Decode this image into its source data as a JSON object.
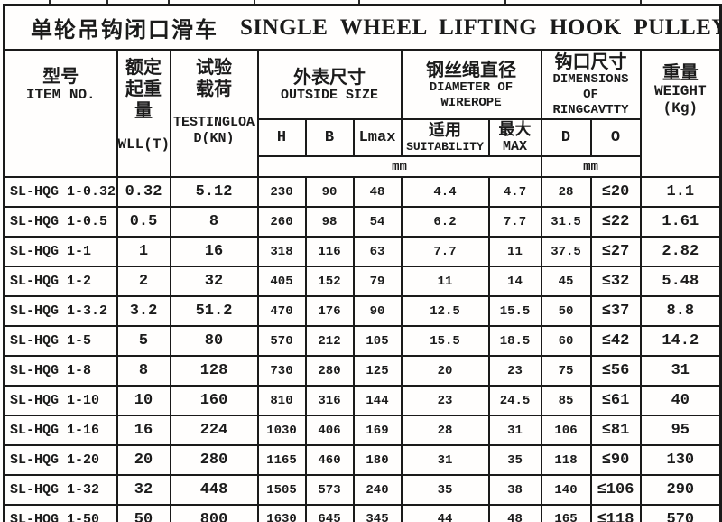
{
  "title": {
    "zh": "单轮吊钩闭口滑车",
    "en": "SINGLE WHEEL LIFTING HOOK PULLEY BLOCK"
  },
  "columns": {
    "item": {
      "zh": "型号",
      "en": "ITEM NO."
    },
    "wll": {
      "zh1": "额定",
      "zh2": "起重量",
      "en": "WLL(T)"
    },
    "testing_load": {
      "zh1": "试验",
      "zh2": "载荷",
      "en": "TESTINGLOAD(KN)"
    },
    "outside_size": {
      "zh": "外表尺寸",
      "en": "OUTSIDE SIZE",
      "sub": [
        "H",
        "B",
        "Lmax"
      ]
    },
    "wirerope": {
      "zh": "钢丝绳直径",
      "en1": "DIAMETER OF",
      "en2": "WIREROPE",
      "sub_fit": {
        "zh": "适用",
        "en": "SUITABILITY"
      },
      "sub_max": {
        "zh": "最大",
        "en": "MAX"
      }
    },
    "ring_cavity": {
      "zh": "钩口尺寸",
      "en1": "DIMENSIONS OF",
      "en2": "RINGCAVTTY",
      "sub": [
        "D",
        "O"
      ]
    },
    "weight": {
      "zh": "重量",
      "en": "WEIGHT",
      "unit": "(Kg)"
    }
  },
  "units": {
    "size_unit": "mm",
    "ring_unit": "mm"
  },
  "rows": [
    [
      "SL-HQG 1-0.32",
      "0.32",
      "5.12",
      "230",
      "90",
      "48",
      "4.4",
      "4.7",
      "28",
      "≤20",
      "1.1"
    ],
    [
      "SL-HQG 1-0.5",
      "0.5",
      "8",
      "260",
      "98",
      "54",
      "6.2",
      "7.7",
      "31.5",
      "≤22",
      "1.61"
    ],
    [
      "SL-HQG 1-1",
      "1",
      "16",
      "318",
      "116",
      "63",
      "7.7",
      "11",
      "37.5",
      "≤27",
      "2.82"
    ],
    [
      "SL-HQG 1-2",
      "2",
      "32",
      "405",
      "152",
      "79",
      "11",
      "14",
      "45",
      "≤32",
      "5.48"
    ],
    [
      "SL-HQG 1-3.2",
      "3.2",
      "51.2",
      "470",
      "176",
      "90",
      "12.5",
      "15.5",
      "50",
      "≤37",
      "8.8"
    ],
    [
      "SL-HQG 1-5",
      "5",
      "80",
      "570",
      "212",
      "105",
      "15.5",
      "18.5",
      "60",
      "≤42",
      "14.2"
    ],
    [
      "SL-HQG 1-8",
      "8",
      "128",
      "730",
      "280",
      "125",
      "20",
      "23",
      "75",
      "≤56",
      "31"
    ],
    [
      "SL-HQG 1-10",
      "10",
      "160",
      "810",
      "316",
      "144",
      "23",
      "24.5",
      "85",
      "≤61",
      "40"
    ],
    [
      "SL-HQG 1-16",
      "16",
      "224",
      "1030",
      "406",
      "169",
      "28",
      "31",
      "106",
      "≤81",
      "95"
    ],
    [
      "SL-HQG 1-20",
      "20",
      "280",
      "1165",
      "460",
      "180",
      "31",
      "35",
      "118",
      "≤90",
      "130"
    ],
    [
      "SL-HQG 1-32",
      "32",
      "448",
      "1505",
      "573",
      "240",
      "35",
      "38",
      "140",
      "≤106",
      "290"
    ],
    [
      "SL-HQG 1-50",
      "50",
      "800",
      "1630",
      "645",
      "345",
      "44",
      "48",
      "165",
      "≤118",
      "570"
    ]
  ]
}
